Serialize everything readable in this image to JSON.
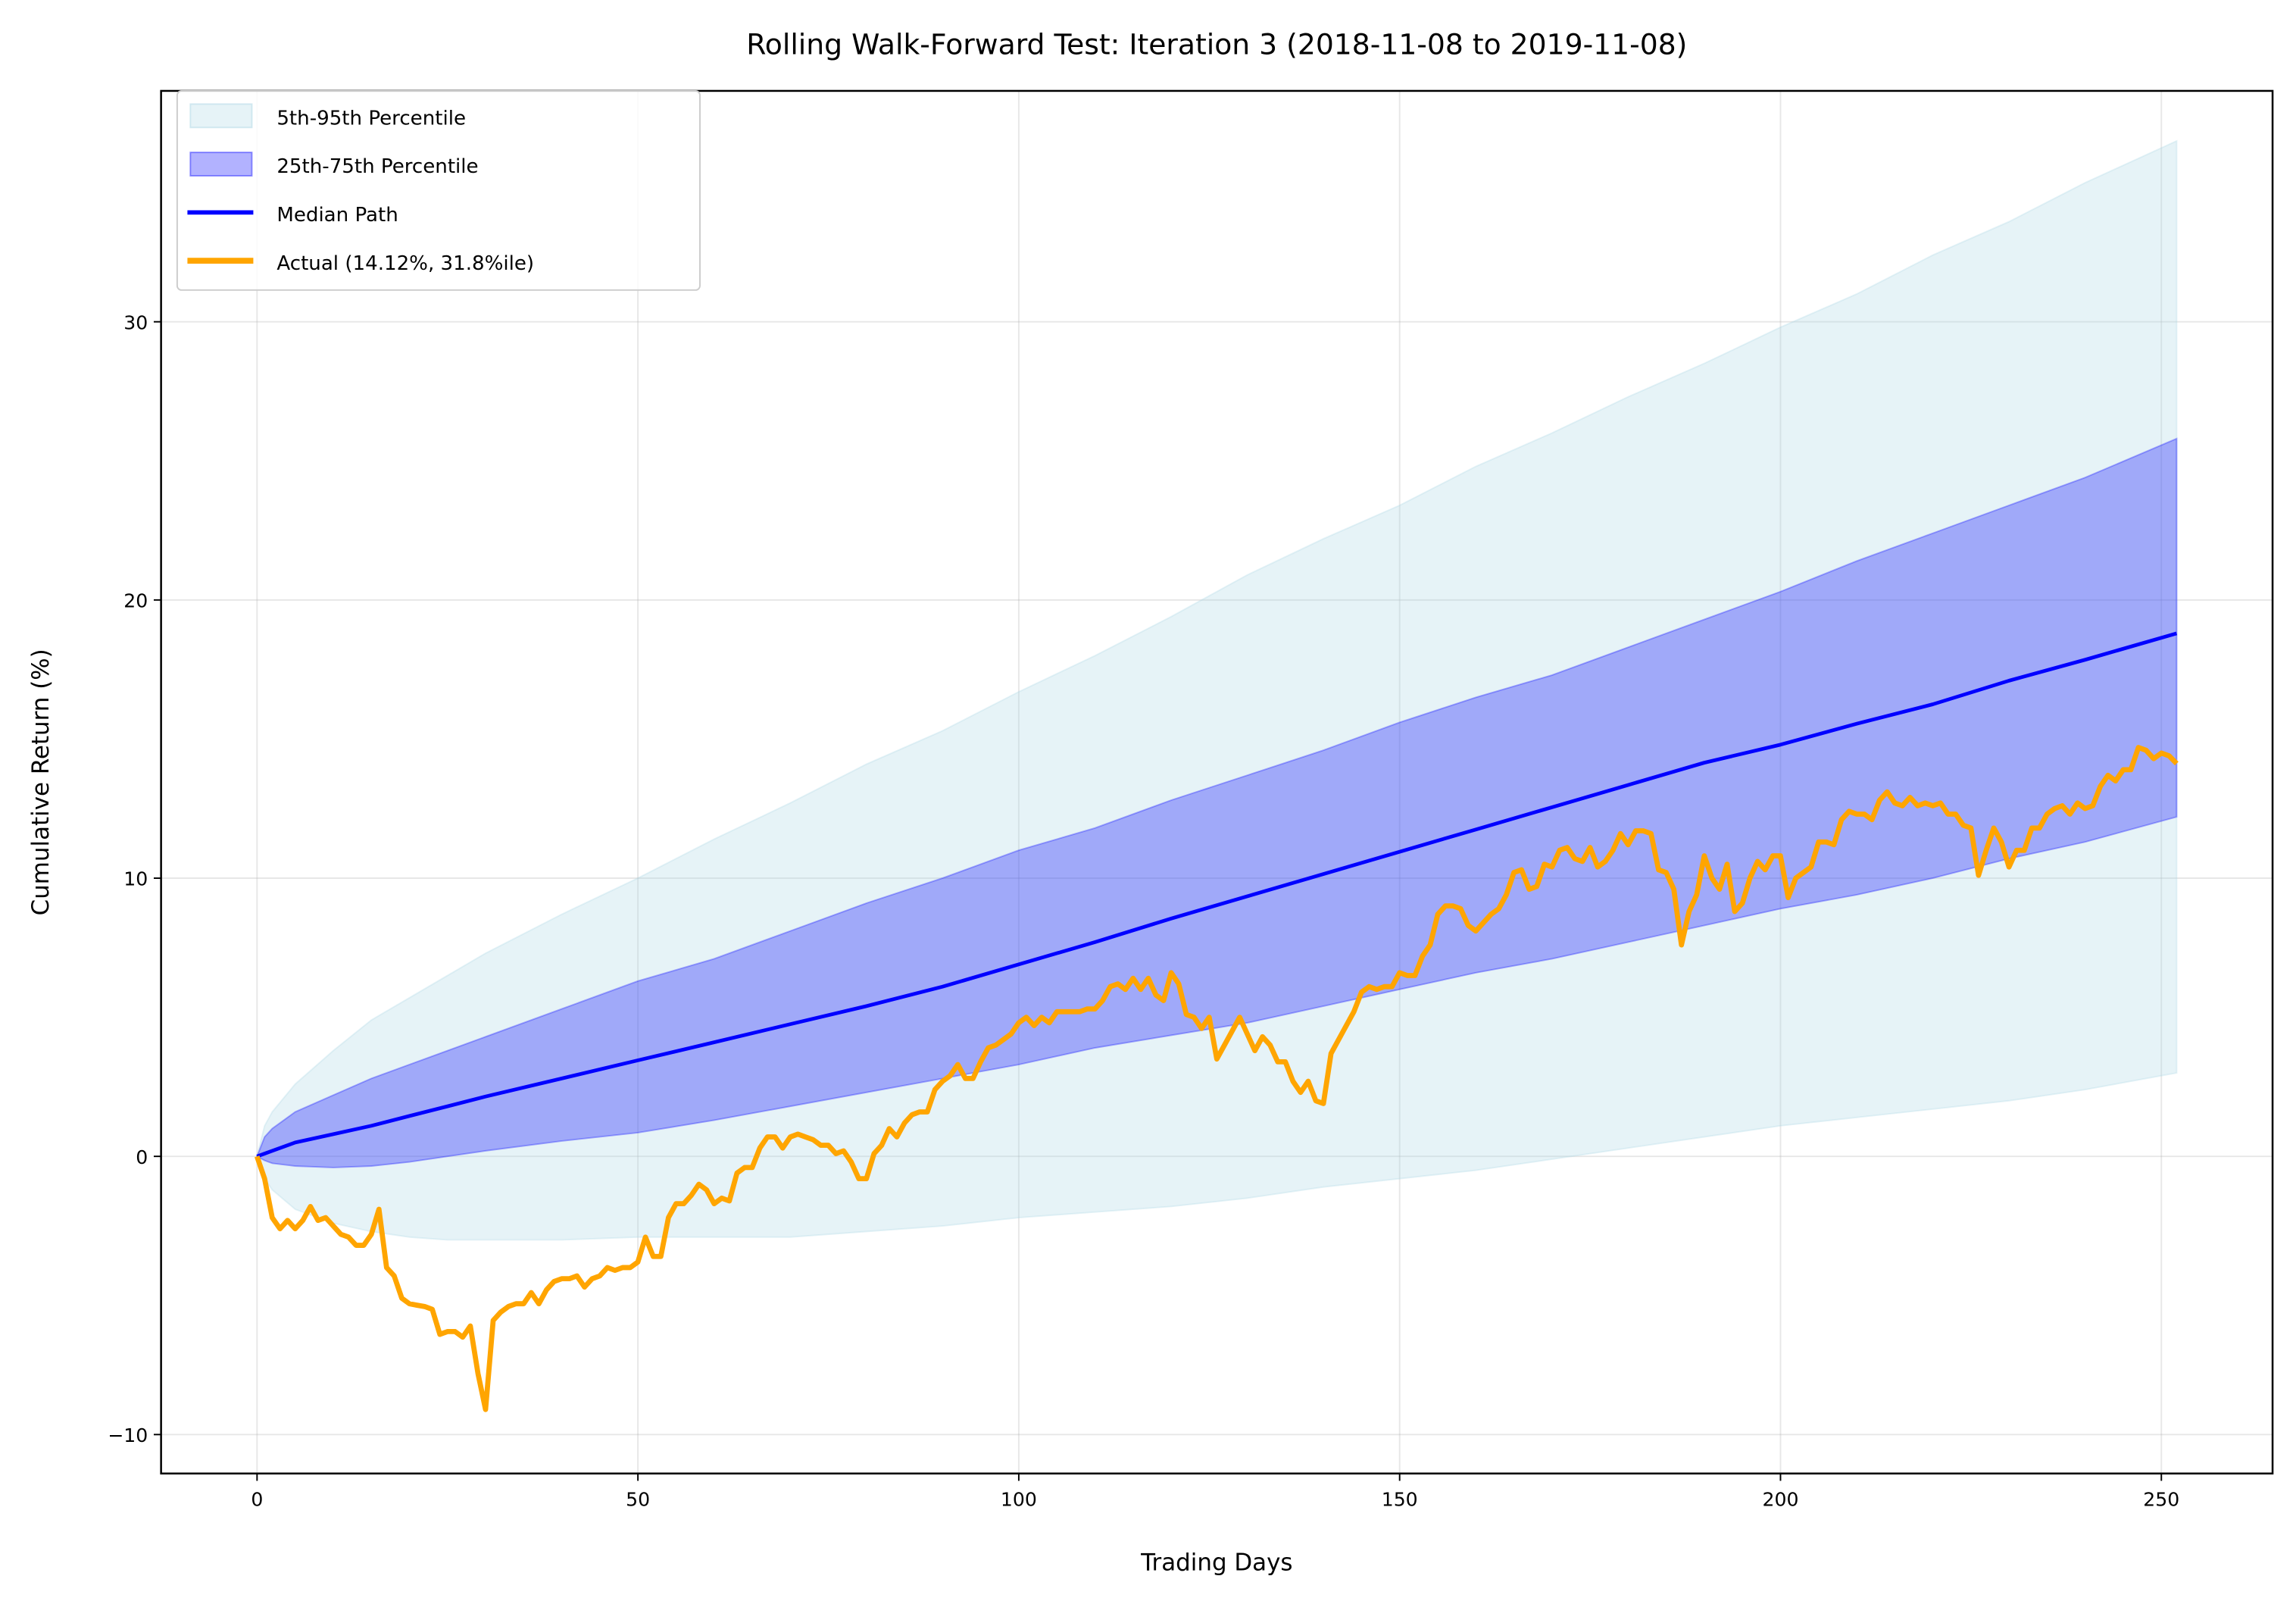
{
  "chart_data": {
    "type": "line",
    "title": "Rolling Walk-Forward Test: Iteration 3 (2018-11-08 to 2019-11-08)",
    "xlabel": "Trading Days",
    "ylabel": "Cumulative Return (%)",
    "xlim": [
      -12.6,
      264.6
    ],
    "ylim": [
      -11.4,
      38.3
    ],
    "xticks": [
      0,
      50,
      100,
      150,
      200,
      250
    ],
    "yticks": [
      -10,
      0,
      10,
      20,
      30
    ],
    "ytick_labels": [
      "−10",
      "0",
      "10",
      "20",
      "30"
    ],
    "grid": true,
    "legend_position": "upper-left",
    "legend": [
      {
        "label": "5th-95th Percentile",
        "kind": "band",
        "color": "#add8e6"
      },
      {
        "label": "25th-75th Percentile",
        "kind": "band",
        "color": "#0000ff"
      },
      {
        "label": "Median Path",
        "kind": "line",
        "color": "#0000ff"
      },
      {
        "label": "Actual (14.12%, 31.8%ile)",
        "kind": "line",
        "color": "#ffa500"
      }
    ],
    "colors": {
      "band_outer": "#add8e6",
      "band_inner": "#0000ff",
      "median": "#0000ff",
      "actual": "#ffa500"
    },
    "bands": {
      "x": [
        0,
        1,
        2,
        5,
        10,
        15,
        20,
        25,
        30,
        40,
        50,
        60,
        70,
        80,
        90,
        100,
        110,
        120,
        130,
        140,
        150,
        160,
        170,
        180,
        190,
        200,
        210,
        220,
        230,
        240,
        252
      ],
      "p5": [
        0,
        -0.8,
        -1.2,
        -1.9,
        -2.4,
        -2.7,
        -2.9,
        -3.0,
        -3.0,
        -3.0,
        -2.9,
        -2.9,
        -2.9,
        -2.7,
        -2.5,
        -2.2,
        -2.0,
        -1.8,
        -1.5,
        -1.1,
        -0.8,
        -0.5,
        -0.1,
        0.3,
        0.7,
        1.1,
        1.4,
        1.7,
        2.0,
        2.4,
        3.0
      ],
      "p25": [
        0,
        -0.15,
        -0.25,
        -0.35,
        -0.4,
        -0.35,
        -0.2,
        0,
        0.2,
        0.55,
        0.85,
        1.3,
        1.8,
        2.3,
        2.8,
        3.3,
        3.9,
        4.35,
        4.8,
        5.4,
        6.0,
        6.6,
        7.1,
        7.7,
        8.3,
        8.9,
        9.4,
        10.0,
        10.7,
        11.3,
        12.2
      ],
      "median": [
        0,
        0.1,
        0.2,
        0.5,
        0.8,
        1.1,
        1.45,
        1.8,
        2.15,
        2.8,
        3.45,
        4.1,
        4.75,
        5.4,
        6.1,
        6.9,
        7.7,
        8.55,
        9.35,
        10.15,
        10.95,
        11.75,
        12.55,
        13.35,
        14.15,
        14.8,
        15.55,
        16.25,
        17.1,
        17.85,
        18.8
      ],
      "p75": [
        0,
        0.7,
        1.0,
        1.6,
        2.2,
        2.8,
        3.3,
        3.8,
        4.3,
        5.3,
        6.3,
        7.1,
        8.1,
        9.1,
        10.0,
        11.0,
        11.8,
        12.8,
        13.7,
        14.6,
        15.6,
        16.5,
        17.3,
        18.3,
        19.3,
        20.3,
        21.4,
        22.4,
        23.4,
        24.4,
        25.8
      ],
      "p95": [
        0,
        1.1,
        1.6,
        2.6,
        3.8,
        4.9,
        5.7,
        6.5,
        7.3,
        8.7,
        10.0,
        11.4,
        12.7,
        14.1,
        15.3,
        16.7,
        18.0,
        19.4,
        20.9,
        22.2,
        23.4,
        24.8,
        26.0,
        27.3,
        28.5,
        29.8,
        31.0,
        32.4,
        33.6,
        35.0,
        36.5
      ]
    },
    "actual": [
      0,
      -0.8,
      -2.2,
      -2.6,
      -2.3,
      -2.6,
      -2.3,
      -1.8,
      -2.3,
      -2.2,
      -2.5,
      -2.8,
      -2.9,
      -3.2,
      -3.2,
      -2.8,
      -1.9,
      -4.0,
      -4.3,
      -5.1,
      -5.3,
      -5.35,
      -5.4,
      -5.5,
      -6.4,
      -6.3,
      -6.3,
      -6.5,
      -6.1,
      -7.8,
      -9.1,
      -5.9,
      -5.6,
      -5.4,
      -5.3,
      -5.3,
      -4.9,
      -5.3,
      -4.8,
      -4.5,
      -4.4,
      -4.4,
      -4.3,
      -4.7,
      -4.4,
      -4.3,
      -4.0,
      -4.1,
      -4.0,
      -4.0,
      -3.8,
      -2.9,
      -3.6,
      -3.6,
      -2.2,
      -1.7,
      -1.7,
      -1.4,
      -1.0,
      -1.2,
      -1.7,
      -1.5,
      -1.6,
      -0.6,
      -0.4,
      -0.4,
      0.3,
      0.7,
      0.7,
      0.3,
      0.7,
      0.8,
      0.7,
      0.6,
      0.4,
      0.4,
      0.1,
      0.2,
      -0.2,
      -0.8,
      -0.8,
      0.1,
      0.4,
      1.0,
      0.7,
      1.2,
      1.5,
      1.6,
      1.6,
      2.4,
      2.7,
      2.9,
      3.3,
      2.8,
      2.8,
      3.4,
      3.9,
      4.0,
      4.2,
      4.4,
      4.8,
      5.0,
      4.7,
      5.0,
      4.8,
      5.2,
      5.2,
      5.2,
      5.2,
      5.3,
      5.3,
      5.6,
      6.1,
      6.2,
      6.0,
      6.4,
      6.0,
      6.4,
      5.8,
      5.6,
      6.6,
      6.2,
      5.1,
      5.0,
      4.6,
      5.0,
      3.5,
      4.0,
      4.5,
      5.0,
      4.4,
      3.8,
      4.3,
      4.0,
      3.4,
      3.4,
      2.7,
      2.3,
      2.7,
      2.0,
      1.9,
      3.7,
      4.2,
      4.7,
      5.2,
      5.9,
      6.1,
      6.0,
      6.1,
      6.1,
      6.6,
      6.5,
      6.5,
      7.2,
      7.6,
      8.7,
      9.0,
      9.0,
      8.9,
      8.3,
      8.1,
      8.4,
      8.7,
      8.9,
      9.4,
      10.2,
      10.3,
      9.6,
      9.7,
      10.5,
      10.4,
      11.0,
      11.1,
      10.7,
      10.6,
      11.1,
      10.4,
      10.6,
      11.0,
      11.6,
      11.2,
      11.7,
      11.7,
      11.6,
      10.3,
      10.2,
      9.6,
      7.6,
      8.8,
      9.4,
      10.8,
      10.0,
      9.6,
      10.5,
      8.8,
      9.1,
      10.0,
      10.6,
      10.3,
      10.8,
      10.8,
      9.3,
      10.0,
      10.2,
      10.4,
      11.3,
      11.3,
      11.2,
      12.1,
      12.4,
      12.3,
      12.3,
      12.1,
      12.8,
      13.1,
      12.7,
      12.6,
      12.9,
      12.6,
      12.7,
      12.6,
      12.7,
      12.3,
      12.3,
      11.9,
      11.8,
      10.1,
      11.0,
      11.8,
      11.3,
      10.4,
      11.0,
      11.0,
      11.8,
      11.8,
      12.3,
      12.5,
      12.6,
      12.3,
      12.7,
      12.5,
      12.6,
      13.3,
      13.7,
      13.5,
      13.9,
      13.9,
      14.7,
      14.6,
      14.3,
      14.5,
      14.4,
      14.12
    ]
  }
}
